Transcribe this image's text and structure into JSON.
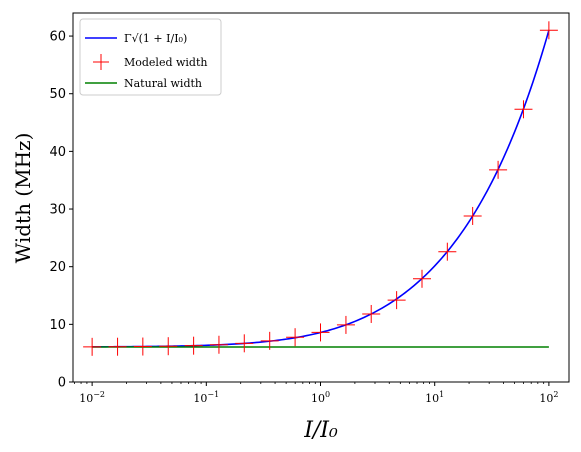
{
  "chart_data": {
    "type": "line",
    "xscale": "log",
    "xlim": [
      0.0068,
      150
    ],
    "ylim": [
      0,
      64
    ],
    "xlabel": "I/I₀",
    "ylabel": "Width (MHz)",
    "x_ticks": [
      {
        "value": 0.01,
        "base": "10",
        "exp": "−2"
      },
      {
        "value": 0.1,
        "base": "10",
        "exp": "−1"
      },
      {
        "value": 1,
        "base": "10",
        "exp": "0"
      },
      {
        "value": 10,
        "base": "10",
        "exp": "1"
      },
      {
        "value": 100,
        "base": "10",
        "exp": "2"
      }
    ],
    "y_ticks": [
      0,
      10,
      20,
      30,
      40,
      50,
      60
    ],
    "y_tick_labels": [
      "0",
      "10",
      "20",
      "30",
      "40",
      "50",
      "60"
    ],
    "series": [
      {
        "name": "Γ√(1 + I/I₀)",
        "kind": "line",
        "color": "#0000ff",
        "gamma": 6.07
      },
      {
        "name": "Modeled width",
        "kind": "markers",
        "marker": "plus",
        "color": "#ff0000",
        "x": [
          0.01,
          0.0167,
          0.0278,
          0.0464,
          0.0774,
          0.129,
          0.215,
          0.359,
          0.599,
          1.0,
          1.67,
          2.78,
          4.64,
          7.74,
          12.9,
          21.5,
          35.9,
          59.9,
          100
        ],
        "y": [
          6.1,
          6.12,
          6.15,
          6.21,
          6.3,
          6.46,
          6.71,
          7.14,
          7.77,
          8.6,
          9.9,
          11.8,
          14.2,
          17.9,
          22.6,
          28.8,
          36.8,
          47.3,
          61.0
        ]
      },
      {
        "name": "Natural width",
        "kind": "line",
        "color": "#008000",
        "y": 6.07,
        "x": [
          0.01,
          100
        ]
      }
    ],
    "legend": {
      "position": "top-left",
      "entries": [
        "Γ√(1 + I/I₀)",
        "Modeled width",
        "Natural width"
      ]
    },
    "grid": false
  }
}
